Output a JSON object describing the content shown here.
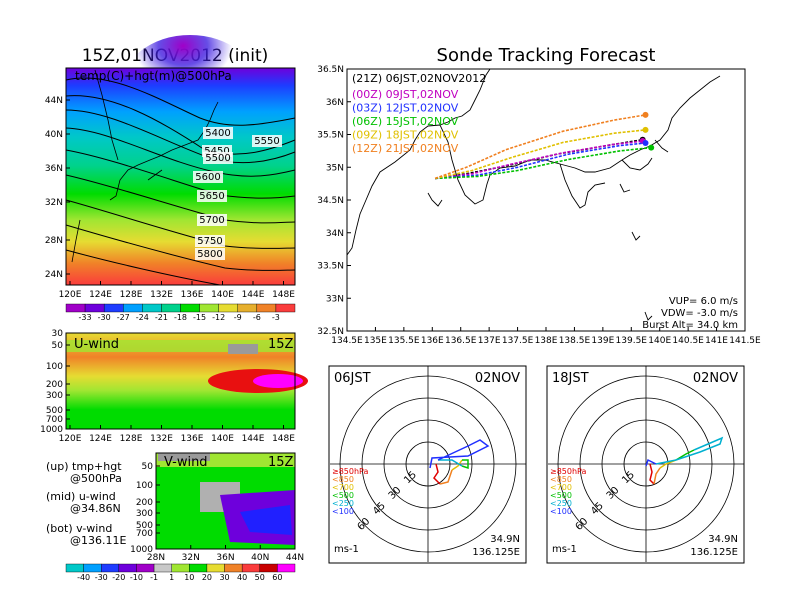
{
  "left_title": "15Z,01NOV2012 (init)",
  "right_title": "Sonde Tracking Forecast",
  "map500": {
    "label": "temp(C)+hgt(m)@500hPa",
    "lon_ticks": [
      "120E",
      "124E",
      "128E",
      "132E",
      "136E",
      "140E",
      "144E",
      "148E"
    ],
    "lat_ticks": [
      "44N",
      "40N",
      "36N",
      "32N",
      "28N",
      "24N"
    ],
    "contour_labels": [
      "5400",
      "5450",
      "5500",
      "5550",
      "5600",
      "5650",
      "5700",
      "5750",
      "5800"
    ],
    "colorbar_labels": [
      "-33",
      "-30",
      "-27",
      "-24",
      "-21",
      "-18",
      "-15",
      "-12",
      "-9",
      "-6",
      "-3"
    ],
    "colorbar_colors": [
      "#a000c8",
      "#6e00dc",
      "#1e3cff",
      "#00a0ff",
      "#00c8c8",
      "#00d28c",
      "#00dc00",
      "#a0e632",
      "#e6dc32",
      "#e6af2d",
      "#f08228",
      "#fa3c3c"
    ]
  },
  "uwind": {
    "label": "U-wind",
    "time": "15Z",
    "p_ticks": [
      "30",
      "50",
      "100",
      "200",
      "300",
      "500",
      "700",
      "1000"
    ],
    "lon_ticks": [
      "120E",
      "124E",
      "128E",
      "132E",
      "136E",
      "140E",
      "144E",
      "148E"
    ]
  },
  "legend_text": {
    "up": "(up) tmp+hgt",
    "up2": "@500hPa",
    "mid": "(mid) u-wind",
    "mid2": "@34.86N",
    "bot": "(bot) v-wind",
    "bot2": "@136.11E"
  },
  "vwind": {
    "label": "V-wind",
    "time": "15Z",
    "p_ticks": [
      "50",
      "100",
      "200",
      "300",
      "500",
      "700",
      "1000"
    ],
    "lat_ticks": [
      "28N",
      "32N",
      "36N",
      "40N",
      "44N"
    ],
    "colorbar_labels": [
      "-40",
      "-30",
      "-20",
      "-10",
      "-1",
      "1",
      "10",
      "20",
      "30",
      "40",
      "50",
      "60"
    ],
    "colorbar_colors": [
      "#00c8c8",
      "#00a0ff",
      "#1e3cff",
      "#6e00dc",
      "#a000c8",
      "#c8c8c8",
      "#a0e632",
      "#00dc00",
      "#e6dc32",
      "#f08228",
      "#fa3c3c",
      "#c80000",
      "#ff00ff"
    ]
  },
  "tracking": {
    "header": "(21Z)  06JST,02NOV2012",
    "entries": [
      {
        "label": "(00Z)  09JST,02NOV",
        "color": "#c000c0"
      },
      {
        "label": "(03Z)  12JST,02NOV",
        "color": "#2030ff"
      },
      {
        "label": "(06Z)  15JST,02NOV",
        "color": "#00c000"
      },
      {
        "label": "(09Z)  18JST,02NOV",
        "color": "#e0c000"
      },
      {
        "label": "(12Z)  21JST,02NOV",
        "color": "#f08020"
      }
    ],
    "lon_ticks": [
      "134.5E",
      "135E",
      "135.5E",
      "136E",
      "136.5E",
      "137E",
      "137.5E",
      "138E",
      "138.5E",
      "139E",
      "139.5E",
      "140E",
      "140.5E",
      "141E",
      "141.5E"
    ],
    "lat_ticks": [
      "36.5N",
      "36N",
      "35.5N",
      "35N",
      "34.5N",
      "34N",
      "33.5N",
      "33N",
      "32.5N"
    ],
    "params": [
      "VUP=  6.0  m/s",
      "VDW= -3.0  m/s",
      "Burst Alt=  34.0  km"
    ],
    "tracks": [
      {
        "color": "#000000",
        "points": [
          [
            136.05,
            34.83
          ],
          [
            136.6,
            34.9
          ],
          [
            137.3,
            35.02
          ],
          [
            138.2,
            35.2
          ],
          [
            139.2,
            35.35
          ],
          [
            139.7,
            35.42
          ]
        ]
      },
      {
        "color": "#c000c0",
        "points": [
          [
            136.05,
            34.83
          ],
          [
            136.7,
            34.9
          ],
          [
            137.4,
            35.05
          ],
          [
            138.3,
            35.22
          ],
          [
            139.2,
            35.35
          ],
          [
            139.7,
            35.4
          ]
        ]
      },
      {
        "color": "#2030ff",
        "points": [
          [
            136.05,
            34.83
          ],
          [
            136.8,
            34.88
          ],
          [
            137.5,
            35.0
          ],
          [
            138.4,
            35.2
          ],
          [
            139.3,
            35.33
          ],
          [
            139.75,
            35.37
          ]
        ]
      },
      {
        "color": "#00c000",
        "points": [
          [
            136.05,
            34.83
          ],
          [
            136.8,
            34.86
          ],
          [
            137.5,
            34.95
          ],
          [
            138.4,
            35.12
          ],
          [
            139.3,
            35.25
          ],
          [
            139.85,
            35.3
          ]
        ]
      },
      {
        "color": "#e0c000",
        "points": [
          [
            136.05,
            34.83
          ],
          [
            136.7,
            34.95
          ],
          [
            137.4,
            35.15
          ],
          [
            138.3,
            35.38
          ],
          [
            139.2,
            35.52
          ],
          [
            139.75,
            35.57
          ]
        ]
      },
      {
        "color": "#f08020",
        "points": [
          [
            136.05,
            34.83
          ],
          [
            136.6,
            35.0
          ],
          [
            137.3,
            35.27
          ],
          [
            138.3,
            35.55
          ],
          [
            139.2,
            35.72
          ],
          [
            139.75,
            35.8
          ]
        ]
      }
    ]
  },
  "hodo_left": {
    "time": "06JST",
    "date": "02NOV",
    "coord1": "34.9N",
    "coord2": "136.125E",
    "unit": "ms-1",
    "ring_labels": [
      "15",
      "30",
      "45",
      "60"
    ]
  },
  "hodo_right": {
    "time": "18JST",
    "date": "02NOV",
    "coord1": "34.9N",
    "coord2": "136.125E",
    "unit": "ms-1",
    "ring_labels": [
      "15",
      "30",
      "45",
      "60"
    ]
  },
  "hodo_legend": [
    {
      "label": "≥850hPa",
      "color": "#e00000"
    },
    {
      "label": "<850",
      "color": "#f08020"
    },
    {
      "label": "<700",
      "color": "#e0c000"
    },
    {
      "label": "<500",
      "color": "#00c000"
    },
    {
      "label": "<250",
      "color": "#00b0d0"
    },
    {
      "label": "<100",
      "color": "#2030ff"
    }
  ],
  "chart_data": [
    {
      "type": "heatmap",
      "title": "15Z,01NOV2012 (init)",
      "variable": "temp(C)+hgt(m)@500hPa",
      "xlim": [
        "120E",
        "150E"
      ],
      "ylim": [
        "22N",
        "47N"
      ],
      "contour_levels": [
        5400,
        5450,
        5500,
        5550,
        5600,
        5650,
        5700,
        5750,
        5800
      ]
    },
    {
      "type": "heatmap",
      "title": "U-wind 15Z",
      "xlim": [
        "120E",
        "150E"
      ],
      "ylim": [
        1000,
        30
      ]
    },
    {
      "type": "heatmap",
      "title": "V-wind 15Z",
      "xlim": [
        "26N",
        "44N"
      ],
      "ylim": [
        1000,
        30
      ]
    },
    {
      "type": "line",
      "title": "Sonde Tracking Forecast",
      "xlim": [
        134.5,
        141.5
      ],
      "ylim": [
        32.5,
        36.5
      ]
    },
    {
      "type": "line",
      "title": "Hodograph 06JST 02NOV"
    },
    {
      "type": "line",
      "title": "Hodograph 18JST 02NOV"
    }
  ]
}
